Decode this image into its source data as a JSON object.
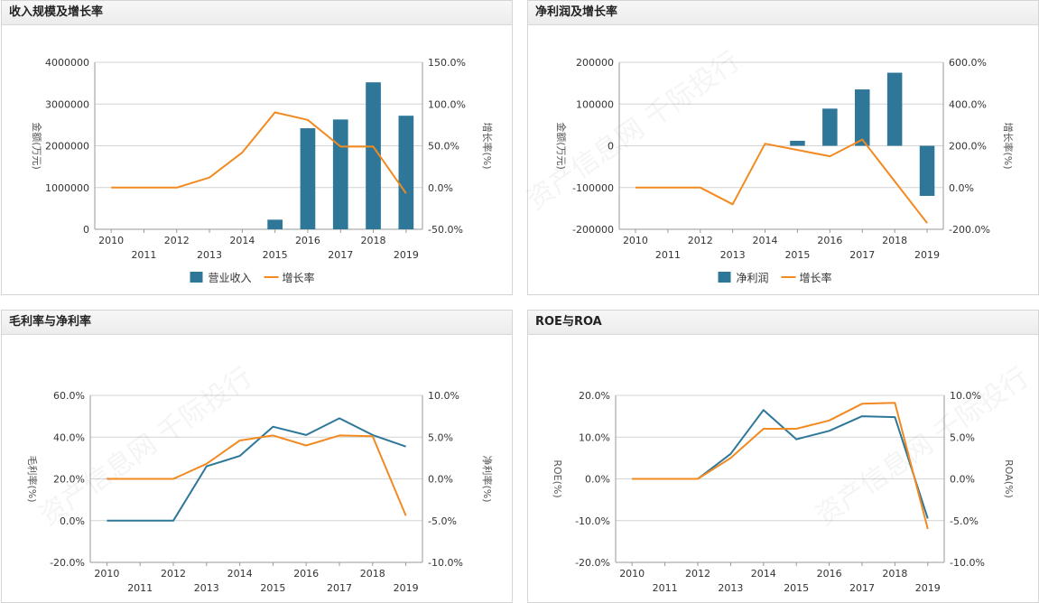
{
  "colors": {
    "primary": "#2e7799",
    "secondary": "#f28a22"
  },
  "watermark": "资产信息网 千际投行",
  "panels": [
    {
      "title": "收入规模及增长率",
      "chart_data": {
        "type": "bar",
        "categories": [
          "2010",
          "2011",
          "2012",
          "2013",
          "2014",
          "2015",
          "2016",
          "2017",
          "2018",
          "2019"
        ],
        "left_axis": {
          "label": "金额(万元)",
          "ticks": [
            0,
            1000000,
            2000000,
            3000000,
            4000000
          ],
          "tick_labels": [
            "0",
            "1000000",
            "2000000",
            "3000000",
            "4000000"
          ],
          "range": [
            0,
            4000000
          ]
        },
        "right_axis": {
          "label": "增长率(%)",
          "ticks": [
            -50,
            0,
            50,
            100,
            150
          ],
          "tick_labels": [
            "-50.0%",
            "0.0%",
            "50.0%",
            "100.0%",
            "150.0%"
          ],
          "range": [
            -50,
            150
          ]
        },
        "series": [
          {
            "name": "营业收入",
            "kind": "bar",
            "axis": "left",
            "color": "#2e7799",
            "values": [
              0,
              0,
              0,
              0,
              0,
              230000,
              2420000,
              2630000,
              3520000,
              2720000
            ]
          },
          {
            "name": "增长率",
            "kind": "line",
            "axis": "right",
            "color": "#f28a22",
            "values": [
              0,
              0,
              0,
              12,
              42,
              90,
              81,
              49,
              49,
              -7
            ]
          }
        ]
      }
    },
    {
      "title": "净利润及增长率",
      "chart_data": {
        "type": "bar",
        "categories": [
          "2010",
          "2011",
          "2012",
          "2013",
          "2014",
          "2015",
          "2016",
          "2017",
          "2018",
          "2019"
        ],
        "left_axis": {
          "label": "金额(万元)",
          "ticks": [
            -200000,
            -100000,
            0,
            100000,
            200000
          ],
          "tick_labels": [
            "-200000",
            "-100000",
            "0",
            "100000",
            "200000"
          ],
          "range": [
            -200000,
            200000
          ]
        },
        "right_axis": {
          "label": "增长率(%)",
          "ticks": [
            -200,
            0,
            200,
            400,
            600
          ],
          "tick_labels": [
            "-200.0%",
            "0.0%",
            "200.0%",
            "400.0%",
            "600.0%"
          ],
          "range": [
            -200,
            600
          ]
        },
        "series": [
          {
            "name": "净利润",
            "kind": "bar",
            "axis": "left",
            "color": "#2e7799",
            "values": [
              0,
              0,
              0,
              0,
              0,
              12000,
              89000,
              135000,
              175000,
              -120000
            ]
          },
          {
            "name": "增长率",
            "kind": "line",
            "axis": "right",
            "color": "#f28a22",
            "values": [
              0,
              0,
              0,
              -80,
              210,
              180,
              150,
              230,
              30,
              -170
            ]
          }
        ]
      }
    },
    {
      "title": "毛利率与净利率",
      "chart_data": {
        "type": "line",
        "categories": [
          "2010",
          "2011",
          "2012",
          "2013",
          "2014",
          "2015",
          "2016",
          "2017",
          "2018",
          "2019"
        ],
        "left_axis": {
          "label": "毛利率(%)",
          "ticks": [
            -20,
            0,
            20,
            40,
            60
          ],
          "tick_labels": [
            "-20.0%",
            "0.0%",
            "20.0%",
            "40.0%",
            "60.0%"
          ],
          "range": [
            -20,
            60
          ]
        },
        "right_axis": {
          "label": "净利率(%)",
          "ticks": [
            -10,
            -5,
            0,
            5,
            10
          ],
          "tick_labels": [
            "-10.0%",
            "-5.0%",
            "0.0%",
            "5.0%",
            "10.0%"
          ],
          "range": [
            -10,
            10
          ]
        },
        "series": [
          {
            "name": "毛利率",
            "kind": "line",
            "axis": "left",
            "color": "#2e7799",
            "values": [
              0,
              0,
              0,
              26,
              31,
              45,
              41,
              49,
              41,
              35.5
            ]
          },
          {
            "name": "净利率",
            "kind": "line",
            "axis": "right",
            "color": "#f28a22",
            "values": [
              0,
              0,
              0,
              1.8,
              4.6,
              5.2,
              4,
              5.2,
              5.1,
              -4.4
            ]
          }
        ]
      }
    },
    {
      "title": "ROE与ROA",
      "chart_data": {
        "type": "line",
        "categories": [
          "2010",
          "2011",
          "2012",
          "2013",
          "2014",
          "2015",
          "2016",
          "2017",
          "2018",
          "2019"
        ],
        "left_axis": {
          "label": "ROE(%)",
          "ticks": [
            -20,
            -10,
            0,
            10,
            20
          ],
          "tick_labels": [
            "-20.0%",
            "-10.0%",
            "0.0%",
            "10.0%",
            "20.0%"
          ],
          "range": [
            -20,
            20
          ]
        },
        "right_axis": {
          "label": "ROA(%)",
          "ticks": [
            -10,
            -5,
            0,
            5,
            10
          ],
          "tick_labels": [
            "-10.0%",
            "-5.0%",
            "0.0%",
            "5.0%",
            "10.0%"
          ],
          "range": [
            -10,
            10
          ]
        },
        "series": [
          {
            "name": "ROE",
            "kind": "line",
            "axis": "left",
            "color": "#2e7799",
            "values": [
              0,
              0,
              0,
              6,
              16.5,
              9.5,
              11.5,
              15,
              14.8,
              -9.5
            ]
          },
          {
            "name": "ROA",
            "kind": "line",
            "axis": "right",
            "color": "#f28a22",
            "values": [
              0,
              0,
              0,
              2.5,
              6,
              6,
              7,
              9,
              9.1,
              -6
            ]
          }
        ]
      }
    }
  ]
}
